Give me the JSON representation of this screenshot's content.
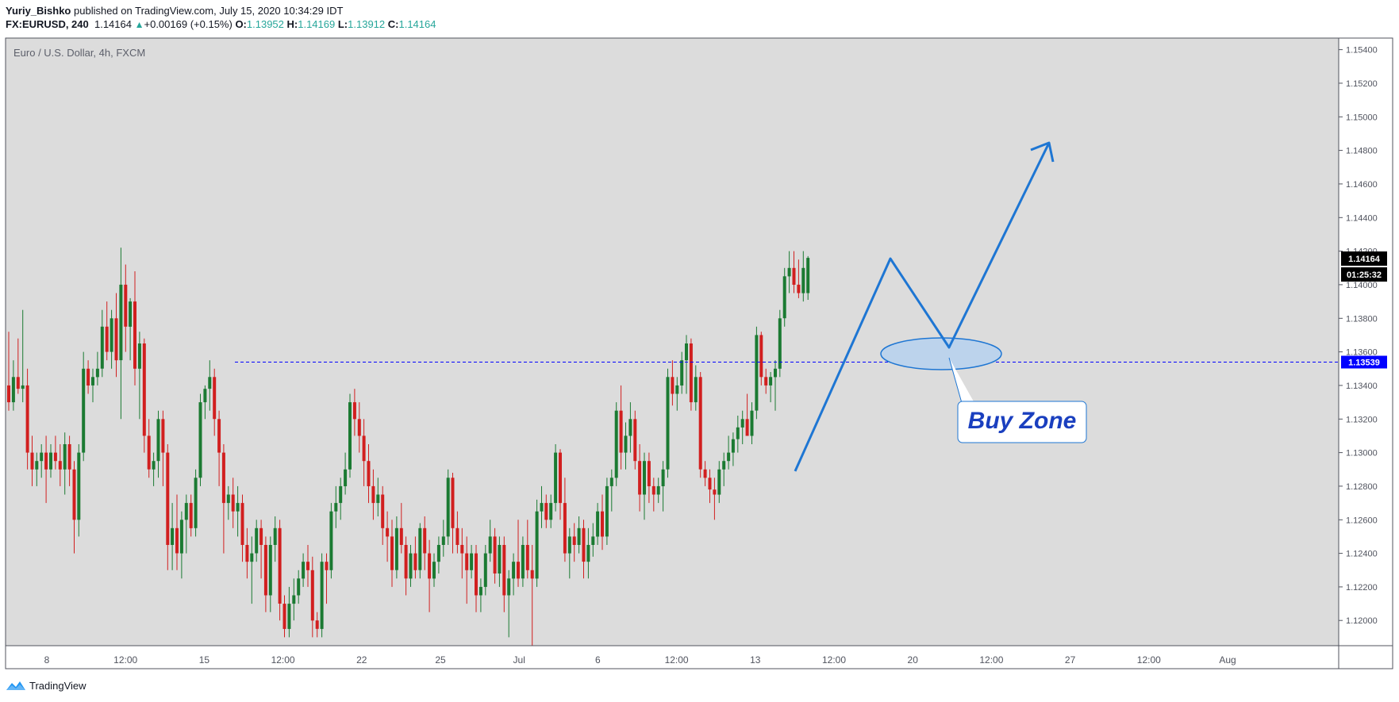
{
  "header": {
    "author": "Yuriy_Bishko",
    "published_text": "published on TradingView.com, July 15, 2020 10:34:29 IDT",
    "symbol": "FX:EURUSD, 240",
    "last": "1.14164",
    "change": "+0.00169 (+0.15%)",
    "o_label": "O:",
    "o": "1.13952",
    "h_label": "H:",
    "h": "1.14169",
    "l_label": "L:",
    "l": "1.13912",
    "c_label": "C:",
    "c": "1.14164"
  },
  "footer": {
    "brand": "TradingView"
  },
  "colors": {
    "up": "#1b7a32",
    "down": "#d11f1f",
    "background": "#dcdcdc",
    "drawing": "#1e76d3",
    "level": "#0000ff",
    "buy_zone_text": "#1a3fbf"
  },
  "chart_data": {
    "type": "candlestick",
    "title": "Euro / U.S. Dollar, 4h, FXCM",
    "ylim": [
      1.1185,
      1.1545
    ],
    "y_ticks": [
      "1.15400",
      "1.15200",
      "1.15000",
      "1.14800",
      "1.14600",
      "1.14400",
      "1.14200",
      "1.14000",
      "1.13800",
      "1.13600",
      "1.13400",
      "1.13200",
      "1.13000",
      "1.12800",
      "1.12600",
      "1.12400",
      "1.12200",
      "1.12000"
    ],
    "x_ticks": [
      "8",
      "12:00",
      "15",
      "12:00",
      "22",
      "25",
      "Jul",
      "6",
      "12:00",
      "13",
      "12:00",
      "20",
      "12:00",
      "27",
      "12:00",
      "Aug"
    ],
    "price_label": "1.14164",
    "countdown_label": "01:25:32",
    "level_label": "1.13539",
    "level_value": 1.13539,
    "annotation": "Buy Zone",
    "candles": [
      [
        1.134,
        1.1372,
        1.1325,
        1.133
      ],
      [
        1.133,
        1.1355,
        1.1325,
        1.1345
      ],
      [
        1.1345,
        1.1368,
        1.1335,
        1.1338
      ],
      [
        1.1338,
        1.1385,
        1.133,
        1.134
      ],
      [
        1.134,
        1.135,
        1.129,
        1.13
      ],
      [
        1.13,
        1.131,
        1.128,
        1.129
      ],
      [
        1.129,
        1.13,
        1.128,
        1.1295
      ],
      [
        1.1295,
        1.1305,
        1.1285,
        1.13
      ],
      [
        1.13,
        1.131,
        1.127,
        1.129
      ],
      [
        1.129,
        1.1305,
        1.1285,
        1.13
      ],
      [
        1.13,
        1.131,
        1.129,
        1.1295
      ],
      [
        1.1295,
        1.1305,
        1.128,
        1.129
      ],
      [
        1.129,
        1.1312,
        1.1275,
        1.1305
      ],
      [
        1.1305,
        1.131,
        1.128,
        1.129
      ],
      [
        1.129,
        1.1295,
        1.124,
        1.126
      ],
      [
        1.126,
        1.1305,
        1.125,
        1.13
      ],
      [
        1.13,
        1.136,
        1.1295,
        1.135
      ],
      [
        1.135,
        1.1355,
        1.1335,
        1.134
      ],
      [
        1.134,
        1.135,
        1.133,
        1.1345
      ],
      [
        1.1345,
        1.136,
        1.134,
        1.135
      ],
      [
        1.135,
        1.1385,
        1.1345,
        1.1375
      ],
      [
        1.1375,
        1.139,
        1.1355,
        1.136
      ],
      [
        1.136,
        1.1385,
        1.135,
        1.138
      ],
      [
        1.138,
        1.1395,
        1.1345,
        1.1355
      ],
      [
        1.1355,
        1.1422,
        1.132,
        1.14
      ],
      [
        1.14,
        1.1412,
        1.136,
        1.1375
      ],
      [
        1.1375,
        1.1392,
        1.1355,
        1.139
      ],
      [
        1.139,
        1.1408,
        1.134,
        1.135
      ],
      [
        1.135,
        1.1372,
        1.132,
        1.1365
      ],
      [
        1.1365,
        1.1368,
        1.13,
        1.131
      ],
      [
        1.131,
        1.132,
        1.1285,
        1.129
      ],
      [
        1.129,
        1.13,
        1.128,
        1.1295
      ],
      [
        1.1295,
        1.1325,
        1.1285,
        1.132
      ],
      [
        1.132,
        1.1325,
        1.128,
        1.13
      ],
      [
        1.13,
        1.1305,
        1.123,
        1.1245
      ],
      [
        1.1245,
        1.127,
        1.123,
        1.1255
      ],
      [
        1.1255,
        1.1275,
        1.123,
        1.124
      ],
      [
        1.124,
        1.1265,
        1.1225,
        1.126
      ],
      [
        1.126,
        1.1275,
        1.124,
        1.127
      ],
      [
        1.127,
        1.1275,
        1.125,
        1.1255
      ],
      [
        1.1255,
        1.129,
        1.125,
        1.1285
      ],
      [
        1.1285,
        1.1335,
        1.128,
        1.133
      ],
      [
        1.133,
        1.134,
        1.132,
        1.1338
      ],
      [
        1.1338,
        1.1355,
        1.1325,
        1.1345
      ],
      [
        1.1345,
        1.135,
        1.131,
        1.132
      ],
      [
        1.132,
        1.1325,
        1.128,
        1.13
      ],
      [
        1.13,
        1.1305,
        1.124,
        1.127
      ],
      [
        1.127,
        1.128,
        1.126,
        1.1275
      ],
      [
        1.1275,
        1.1285,
        1.1255,
        1.1265
      ],
      [
        1.1265,
        1.128,
        1.125,
        1.127
      ],
      [
        1.127,
        1.1275,
        1.1235,
        1.1245
      ],
      [
        1.1245,
        1.1255,
        1.1225,
        1.1235
      ],
      [
        1.1235,
        1.125,
        1.121,
        1.124
      ],
      [
        1.124,
        1.126,
        1.1235,
        1.1255
      ],
      [
        1.1255,
        1.126,
        1.1225,
        1.1245
      ],
      [
        1.1245,
        1.125,
        1.1205,
        1.1215
      ],
      [
        1.1215,
        1.125,
        1.1205,
        1.1245
      ],
      [
        1.1245,
        1.1262,
        1.1235,
        1.1255
      ],
      [
        1.1255,
        1.126,
        1.12,
        1.121
      ],
      [
        1.121,
        1.1215,
        1.119,
        1.1195
      ],
      [
        1.1195,
        1.122,
        1.119,
        1.121
      ],
      [
        1.121,
        1.1225,
        1.12,
        1.1215
      ],
      [
        1.1215,
        1.123,
        1.121,
        1.1225
      ],
      [
        1.1225,
        1.124,
        1.122,
        1.1235
      ],
      [
        1.1235,
        1.1245,
        1.122,
        1.123
      ],
      [
        1.123,
        1.1238,
        1.119,
        1.12
      ],
      [
        1.12,
        1.1205,
        1.119,
        1.1195
      ],
      [
        1.1195,
        1.124,
        1.119,
        1.1235
      ],
      [
        1.1235,
        1.124,
        1.121,
        1.123
      ],
      [
        1.123,
        1.127,
        1.1225,
        1.1265
      ],
      [
        1.1265,
        1.128,
        1.1255,
        1.127
      ],
      [
        1.127,
        1.1285,
        1.126,
        1.128
      ],
      [
        1.128,
        1.13,
        1.1275,
        1.129
      ],
      [
        1.129,
        1.1335,
        1.1285,
        1.133
      ],
      [
        1.133,
        1.1338,
        1.131,
        1.132
      ],
      [
        1.132,
        1.133,
        1.13,
        1.131
      ],
      [
        1.131,
        1.132,
        1.128,
        1.1295
      ],
      [
        1.1295,
        1.1305,
        1.127,
        1.128
      ],
      [
        1.128,
        1.129,
        1.126,
        1.127
      ],
      [
        1.127,
        1.1285,
        1.1262,
        1.1275
      ],
      [
        1.1275,
        1.128,
        1.1245,
        1.1255
      ],
      [
        1.1255,
        1.1265,
        1.1235,
        1.125
      ],
      [
        1.125,
        1.126,
        1.122,
        1.123
      ],
      [
        1.123,
        1.1262,
        1.1225,
        1.1255
      ],
      [
        1.1255,
        1.127,
        1.124,
        1.1245
      ],
      [
        1.1245,
        1.125,
        1.1215,
        1.1225
      ],
      [
        1.1225,
        1.1245,
        1.122,
        1.124
      ],
      [
        1.124,
        1.125,
        1.1225,
        1.123
      ],
      [
        1.123,
        1.1258,
        1.1225,
        1.1255
      ],
      [
        1.1255,
        1.1262,
        1.123,
        1.124
      ],
      [
        1.124,
        1.1248,
        1.1205,
        1.1225
      ],
      [
        1.1225,
        1.124,
        1.122,
        1.1235
      ],
      [
        1.1235,
        1.125,
        1.1228,
        1.1245
      ],
      [
        1.1245,
        1.126,
        1.1238,
        1.125
      ],
      [
        1.125,
        1.129,
        1.1245,
        1.1285
      ],
      [
        1.1285,
        1.1288,
        1.124,
        1.1255
      ],
      [
        1.1255,
        1.1265,
        1.124,
        1.1245
      ],
      [
        1.1245,
        1.1255,
        1.1225,
        1.124
      ],
      [
        1.124,
        1.125,
        1.121,
        1.123
      ],
      [
        1.123,
        1.1245,
        1.1225,
        1.124
      ],
      [
        1.124,
        1.1245,
        1.1205,
        1.1215
      ],
      [
        1.1215,
        1.1225,
        1.1205,
        1.122
      ],
      [
        1.122,
        1.1245,
        1.1215,
        1.124
      ],
      [
        1.124,
        1.126,
        1.1235,
        1.125
      ],
      [
        1.125,
        1.1255,
        1.1222,
        1.1228
      ],
      [
        1.1228,
        1.125,
        1.122,
        1.1245
      ],
      [
        1.1245,
        1.125,
        1.1205,
        1.1215
      ],
      [
        1.1215,
        1.123,
        1.119,
        1.1225
      ],
      [
        1.1225,
        1.124,
        1.1215,
        1.1235
      ],
      [
        1.1235,
        1.126,
        1.122,
        1.1225
      ],
      [
        1.1225,
        1.125,
        1.122,
        1.1245
      ],
      [
        1.1245,
        1.126,
        1.1225,
        1.123
      ],
      [
        1.123,
        1.1245,
        1.1185,
        1.1225
      ],
      [
        1.1225,
        1.1272,
        1.122,
        1.1265
      ],
      [
        1.1265,
        1.128,
        1.1255,
        1.127
      ],
      [
        1.127,
        1.1275,
        1.1255,
        1.126
      ],
      [
        1.126,
        1.1275,
        1.1255,
        1.127
      ],
      [
        1.127,
        1.1305,
        1.1265,
        1.13
      ],
      [
        1.13,
        1.1302,
        1.126,
        1.127
      ],
      [
        1.127,
        1.1285,
        1.1235,
        1.124
      ],
      [
        1.124,
        1.1255,
        1.1225,
        1.125
      ],
      [
        1.125,
        1.1258,
        1.1235,
        1.1245
      ],
      [
        1.1245,
        1.1262,
        1.124,
        1.1255
      ],
      [
        1.1255,
        1.126,
        1.1225,
        1.1235
      ],
      [
        1.1235,
        1.1255,
        1.1225,
        1.1245
      ],
      [
        1.1245,
        1.1258,
        1.1238,
        1.125
      ],
      [
        1.125,
        1.127,
        1.1245,
        1.1265
      ],
      [
        1.1265,
        1.1275,
        1.1242,
        1.125
      ],
      [
        1.125,
        1.1285,
        1.1245,
        1.128
      ],
      [
        1.128,
        1.129,
        1.1265,
        1.1285
      ],
      [
        1.1285,
        1.133,
        1.128,
        1.1325
      ],
      [
        1.1325,
        1.134,
        1.129,
        1.13
      ],
      [
        1.13,
        1.1318,
        1.129,
        1.131
      ],
      [
        1.131,
        1.133,
        1.13,
        1.132
      ],
      [
        1.132,
        1.1325,
        1.129,
        1.1295
      ],
      [
        1.1295,
        1.1305,
        1.1265,
        1.1275
      ],
      [
        1.1275,
        1.13,
        1.126,
        1.1295
      ],
      [
        1.1295,
        1.13,
        1.127,
        1.128
      ],
      [
        1.128,
        1.1285,
        1.1265,
        1.1275
      ],
      [
        1.1275,
        1.1285,
        1.127,
        1.128
      ],
      [
        1.128,
        1.1295,
        1.1265,
        1.129
      ],
      [
        1.129,
        1.135,
        1.1285,
        1.1345
      ],
      [
        1.1345,
        1.1355,
        1.1328,
        1.1335
      ],
      [
        1.1335,
        1.1345,
        1.1325,
        1.134
      ],
      [
        1.134,
        1.136,
        1.1335,
        1.1355
      ],
      [
        1.1355,
        1.137,
        1.1335,
        1.1365
      ],
      [
        1.1365,
        1.1368,
        1.1325,
        1.133
      ],
      [
        1.133,
        1.1352,
        1.1325,
        1.1345
      ],
      [
        1.1345,
        1.1348,
        1.1285,
        1.129
      ],
      [
        1.129,
        1.1295,
        1.128,
        1.1285
      ],
      [
        1.1285,
        1.129,
        1.127,
        1.1278
      ],
      [
        1.1278,
        1.1285,
        1.126,
        1.1275
      ],
      [
        1.1275,
        1.1295,
        1.127,
        1.129
      ],
      [
        1.129,
        1.13,
        1.128,
        1.1295
      ],
      [
        1.1295,
        1.131,
        1.129,
        1.13
      ],
      [
        1.13,
        1.1312,
        1.1292,
        1.1308
      ],
      [
        1.1308,
        1.1322,
        1.13,
        1.1315
      ],
      [
        1.1315,
        1.1325,
        1.1305,
        1.132
      ],
      [
        1.132,
        1.1335,
        1.131,
        1.131
      ],
      [
        1.131,
        1.133,
        1.1305,
        1.1325
      ],
      [
        1.1325,
        1.1375,
        1.132,
        1.137
      ],
      [
        1.137,
        1.1372,
        1.134,
        1.1345
      ],
      [
        1.1345,
        1.135,
        1.1335,
        1.134
      ],
      [
        1.134,
        1.1348,
        1.133,
        1.1345
      ],
      [
        1.1345,
        1.1355,
        1.1325,
        1.135
      ],
      [
        1.135,
        1.1385,
        1.1345,
        1.138
      ],
      [
        1.138,
        1.141,
        1.1375,
        1.1405
      ],
      [
        1.1405,
        1.142,
        1.1395,
        1.141
      ],
      [
        1.141,
        1.142,
        1.1395,
        1.14
      ],
      [
        1.14,
        1.1415,
        1.1392,
        1.1395
      ],
      [
        1.1395,
        1.142,
        1.139,
        1.141
      ],
      [
        1.1395,
        1.1417,
        1.1391,
        1.1416
      ]
    ]
  }
}
